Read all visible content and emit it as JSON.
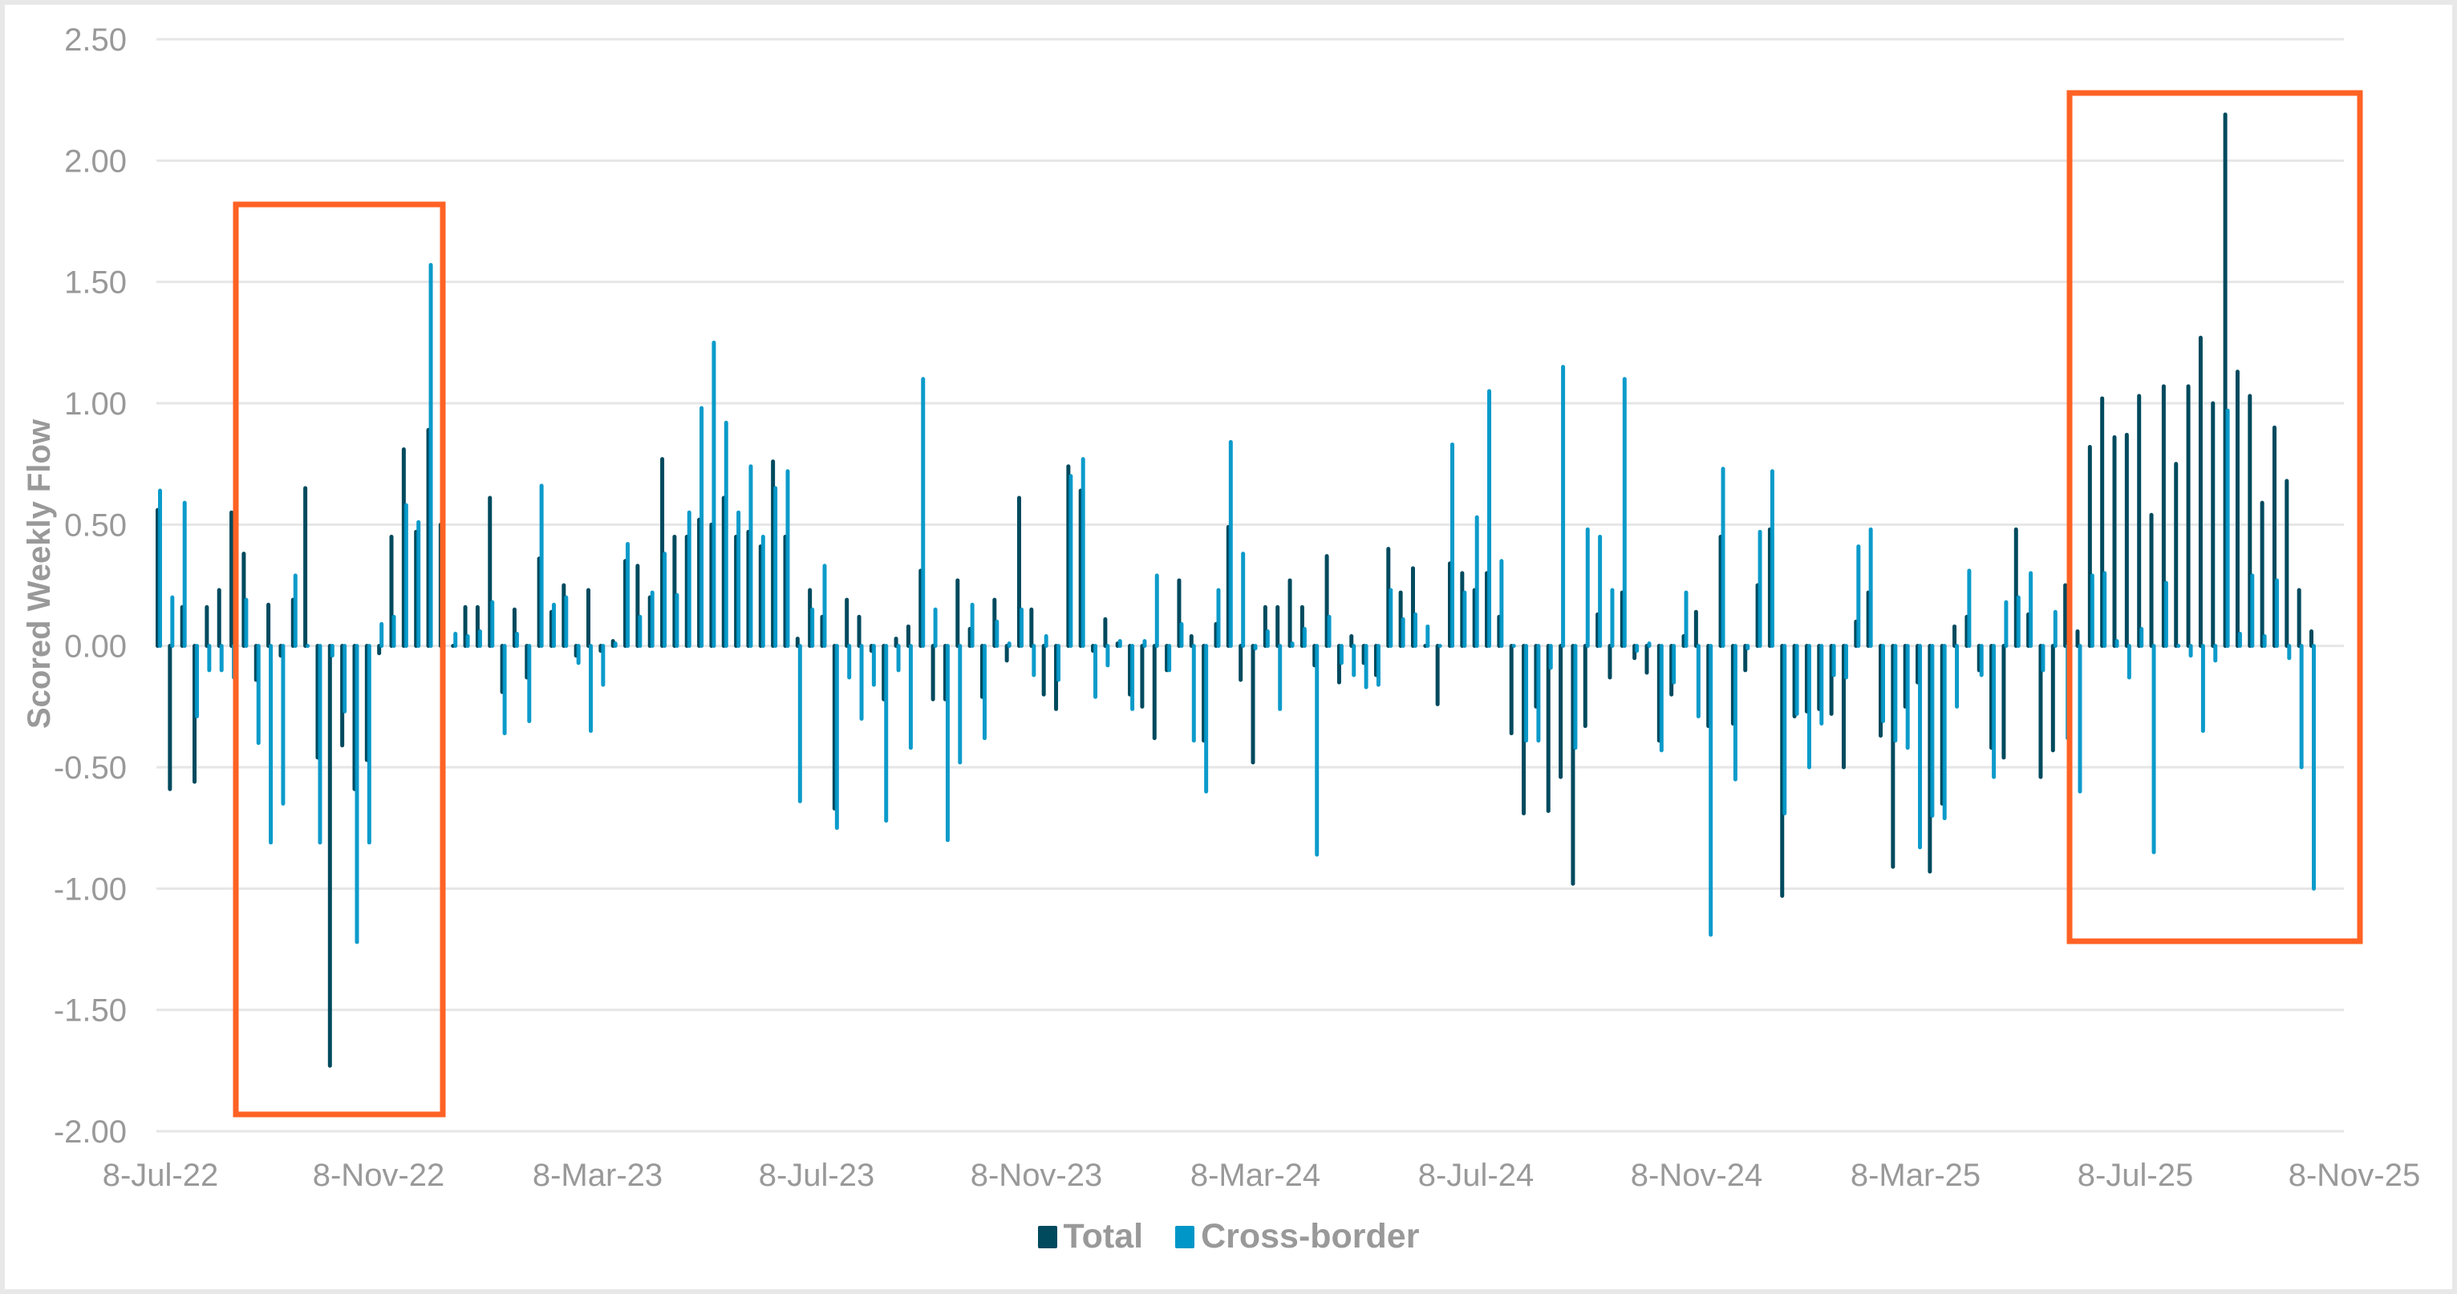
{
  "chart_data": {
    "type": "bar",
    "title": "",
    "xlabel": "",
    "ylabel": "Scored Weekly Flow",
    "ylim": [
      -2.0,
      2.5
    ],
    "yticks": [
      "2.50",
      "2.00",
      "1.50",
      "1.00",
      "0.50",
      "0.00",
      "-0.50",
      "-1.00",
      "-1.50",
      "-2.00"
    ],
    "xtick_labels": [
      "8-Jul-22",
      "8-Nov-22",
      "8-Mar-23",
      "8-Jul-23",
      "8-Nov-23",
      "8-Mar-24",
      "8-Jul-24",
      "8-Nov-24",
      "8-Mar-25",
      "8-Jul-25",
      "8-Nov-25"
    ],
    "x_frequency": "weekly",
    "grid": true,
    "legend_position": "bottom",
    "series": [
      {
        "name": "Total",
        "color": "#004A5E",
        "values": [
          0.56,
          -0.59,
          0.16,
          -0.56,
          0.16,
          0.23,
          0.55,
          0.38,
          -0.14,
          0.17,
          -0.04,
          0.19,
          0.65,
          -0.46,
          -1.73,
          -0.41,
          -0.59,
          -0.47,
          -0.03,
          0.45,
          0.81,
          0.47,
          0.89,
          0.5,
          0.0,
          0.16,
          0.16,
          0.61,
          -0.19,
          0.15,
          -0.13,
          0.36,
          0.14,
          0.25,
          -0.04,
          0.23,
          -0.02,
          0.02,
          0.35,
          0.33,
          0.2,
          0.77,
          0.45,
          0.45,
          0.52,
          0.5,
          0.61,
          0.45,
          0.47,
          0.41,
          0.76,
          0.45,
          0.03,
          0.23,
          0.12,
          -0.67,
          0.19,
          0.12,
          -0.02,
          -0.22,
          0.03,
          0.08,
          0.31,
          -0.22,
          -0.22,
          0.27,
          0.07,
          -0.21,
          0.19,
          -0.06,
          0.61,
          0.15,
          -0.2,
          -0.26,
          0.74,
          0.64,
          -0.02,
          0.11,
          0.01,
          -0.2,
          -0.25,
          -0.38,
          -0.1,
          0.27,
          0.04,
          -0.39,
          0.09,
          0.49,
          -0.14,
          -0.48,
          0.16,
          0.16,
          0.27,
          0.16,
          -0.08,
          0.37,
          -0.15,
          0.04,
          -0.07,
          -0.12,
          0.4,
          0.22,
          0.32,
          0.0,
          -0.24,
          0.34,
          0.3,
          0.23,
          0.3,
          0.12,
          -0.36,
          -0.69,
          -0.25,
          -0.68,
          -0.54,
          -0.98,
          -0.33,
          0.13,
          -0.13,
          0.22,
          -0.05,
          -0.11,
          -0.39,
          -0.2,
          0.04,
          0.14,
          -0.33,
          0.45,
          -0.32,
          -0.1,
          0.25,
          0.48,
          -1.03,
          -0.29,
          -0.27,
          -0.26,
          -0.28,
          -0.5,
          0.1,
          0.22,
          -0.37,
          -0.91,
          -0.25,
          -0.15,
          -0.93,
          -0.65,
          0.08,
          0.12,
          -0.1,
          -0.42,
          -0.46,
          0.48,
          0.13,
          -0.54,
          -0.43,
          0.25,
          0.06,
          0.82,
          1.02,
          0.86,
          0.87,
          1.03,
          0.54,
          1.07,
          0.75,
          1.07,
          1.27,
          1.0,
          2.19,
          1.13,
          1.03,
          0.59,
          0.9,
          0.68,
          0.23,
          0.06
        ]
      },
      {
        "name": "Cross-border",
        "color": "#0096C8",
        "values": [
          0.64,
          0.2,
          0.59,
          -0.29,
          -0.1,
          -0.1,
          -0.13,
          0.19,
          -0.4,
          -0.81,
          -0.65,
          0.29,
          0.0,
          -0.81,
          -0.04,
          -0.27,
          -1.22,
          -0.81,
          0.09,
          0.12,
          0.58,
          0.51,
          1.57,
          0.0,
          0.05,
          0.04,
          0.06,
          0.18,
          -0.36,
          0.05,
          -0.31,
          0.66,
          0.17,
          0.2,
          -0.07,
          -0.35,
          -0.16,
          0.01,
          0.42,
          0.12,
          0.22,
          0.38,
          0.21,
          0.55,
          0.98,
          1.25,
          0.92,
          0.55,
          0.74,
          0.45,
          0.65,
          0.72,
          -0.64,
          0.15,
          0.33,
          -0.75,
          -0.13,
          -0.3,
          -0.16,
          -0.72,
          -0.1,
          -0.42,
          1.1,
          0.15,
          -0.8,
          -0.48,
          0.17,
          -0.38,
          0.1,
          0.01,
          0.15,
          -0.12,
          0.04,
          -0.14,
          0.7,
          0.77,
          -0.21,
          -0.08,
          0.02,
          -0.26,
          0.02,
          0.29,
          -0.1,
          0.09,
          -0.39,
          -0.6,
          0.23,
          0.84,
          0.38,
          -0.01,
          0.06,
          -0.26,
          0.01,
          0.07,
          -0.86,
          0.12,
          -0.07,
          -0.12,
          -0.17,
          -0.16,
          0.23,
          0.11,
          0.13,
          0.08,
          0.0,
          0.83,
          0.22,
          0.53,
          1.05,
          0.35,
          0.0,
          -0.39,
          -0.39,
          -0.09,
          1.15,
          -0.42,
          0.48,
          0.45,
          0.23,
          1.1,
          -0.02,
          0.01,
          -0.43,
          -0.15,
          0.22,
          -0.29,
          -1.19,
          0.73,
          -0.55,
          -0.01,
          0.47,
          0.72,
          -0.69,
          -0.28,
          -0.5,
          -0.32,
          -0.12,
          -0.13,
          0.41,
          0.48,
          -0.31,
          -0.39,
          -0.42,
          -0.83,
          -0.7,
          -0.71,
          -0.25,
          0.31,
          -0.12,
          -0.54,
          0.18,
          0.2,
          0.3,
          -0.1,
          0.14,
          -0.38,
          -0.6,
          0.29,
          0.3,
          0.02,
          -0.13,
          0.07,
          -0.85,
          0.26,
          0.0,
          -0.04,
          -0.35,
          -0.06,
          0.97,
          0.05,
          0.29,
          0.04,
          0.27,
          -0.05,
          -0.5,
          -1.0
        ]
      }
    ],
    "annotations": [
      {
        "type": "highlight-box",
        "color": "#FF6224",
        "x_range": [
          "Aug-22",
          "Dec-22"
        ],
        "y_range": [
          -1.93,
          1.83
        ]
      },
      {
        "type": "highlight-box",
        "color": "#FF6224",
        "x_range": [
          "Jul-25",
          "Nov-25"
        ],
        "y_range": [
          -1.22,
          2.27
        ]
      }
    ]
  },
  "legend": [
    {
      "label": "Total",
      "color": "#004A5E"
    },
    {
      "label": "Cross-border",
      "color": "#0096C8"
    }
  ]
}
